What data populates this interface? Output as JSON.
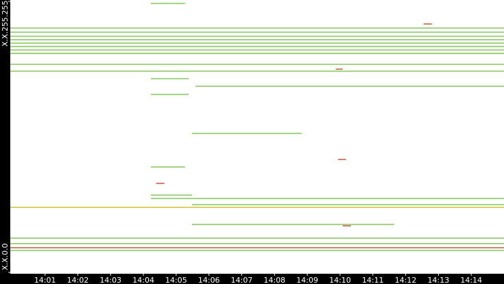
{
  "chart_data": {
    "type": "timeline",
    "xlim": [
      -0.06,
      15.0
    ],
    "xticks": [
      {
        "value": 1,
        "label": "14:01"
      },
      {
        "value": 2,
        "label": "14:02"
      },
      {
        "value": 3,
        "label": "14:03"
      },
      {
        "value": 4,
        "label": "14:04"
      },
      {
        "value": 5,
        "label": "14:05"
      },
      {
        "value": 6,
        "label": "14:06"
      },
      {
        "value": 7,
        "label": "14:07"
      },
      {
        "value": 8,
        "label": "14:08"
      },
      {
        "value": 9,
        "label": "14:09"
      },
      {
        "value": 10,
        "label": "14:10"
      },
      {
        "value": 11,
        "label": "14:11"
      },
      {
        "value": 12,
        "label": "14:12"
      },
      {
        "value": 13,
        "label": "14:13"
      },
      {
        "value": 14,
        "label": "14:14"
      }
    ],
    "ylim": [
      0,
      65535
    ],
    "yticks": [
      {
        "value": 0,
        "label": "X.X.0.0"
      },
      {
        "value": 65535,
        "label": "X.X.255.255"
      }
    ],
    "series": [
      {
        "color": "#6bbd3a",
        "values": [
          59080,
          58090,
          57100,
          56270,
          55440,
          54610,
          53780,
          52950,
          50310,
          48660,
          8270,
          6950,
          5300,
          45010,
          33590,
          11580,
          16380,
          25480,
          65040,
          46830,
          43030,
          17870,
          18700
        ],
        "start": [
          -0.06,
          -0.06,
          -0.06,
          -0.06,
          -0.06,
          -0.06,
          -0.06,
          -0.06,
          -0.06,
          -0.06,
          -0.06,
          -0.06,
          -0.06,
          5.59,
          5.48,
          5.48,
          5.48,
          4.23,
          4.23,
          4.23,
          4.23,
          4.23,
          4.23
        ],
        "end": [
          15.0,
          15.0,
          15.0,
          15.0,
          15.0,
          15.0,
          15.0,
          15.0,
          15.0,
          15.0,
          15.0,
          15.0,
          15.0,
          15.0,
          8.83,
          11.65,
          15.0,
          5.27,
          5.27,
          5.38,
          5.38,
          15.0,
          5.48
        ]
      },
      {
        "color": "#c8b400",
        "values": [
          15720
        ],
        "start": [
          -0.06
        ],
        "end": [
          15.0
        ]
      },
      {
        "color": "#c0391b",
        "values": [
          5960,
          21510,
          49150,
          60070,
          27310,
          11250
        ],
        "start": [
          -0.06,
          4.39,
          9.87,
          12.55,
          9.94,
          10.08
        ],
        "end": [
          15.0,
          4.64,
          10.08,
          12.8,
          10.18,
          10.33
        ]
      }
    ]
  }
}
